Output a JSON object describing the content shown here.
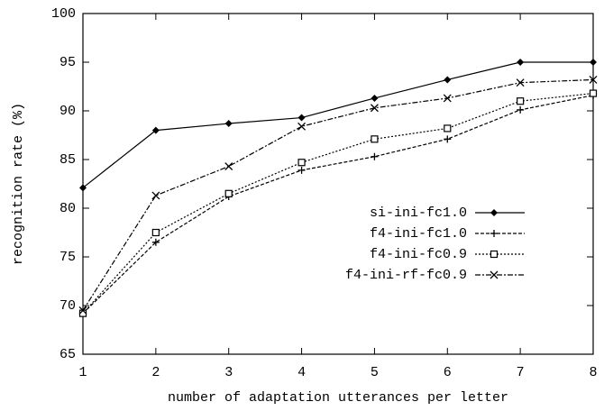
{
  "chart_data": {
    "type": "line",
    "xlabel": "number of adaptation utterances per letter",
    "ylabel": "recognition rate (%)",
    "x": [
      1,
      2,
      3,
      4,
      5,
      6,
      7,
      8
    ],
    "xlim": [
      1,
      8
    ],
    "xticks": [
      1,
      2,
      3,
      4,
      5,
      6,
      7,
      8
    ],
    "ylim": [
      65,
      100
    ],
    "yticks": [
      65,
      70,
      75,
      80,
      85,
      90,
      95,
      100
    ],
    "legend": "center-right",
    "series": [
      {
        "name": "si-ini-fc1.0",
        "color": "#000000",
        "dash": "solid",
        "marker": "diamond",
        "values": [
          82.1,
          88.0,
          88.7,
          89.3,
          91.3,
          93.2,
          95.0,
          95.0
        ]
      },
      {
        "name": "f4-ini-fc1.0",
        "color": "#000000",
        "dash": "dashed",
        "marker": "plus",
        "values": [
          69.2,
          76.5,
          81.2,
          83.9,
          85.3,
          87.1,
          90.1,
          91.6
        ]
      },
      {
        "name": "f4-ini-fc0.9",
        "color": "#000000",
        "dash": "dotted",
        "marker": "square",
        "values": [
          69.2,
          77.5,
          81.5,
          84.7,
          87.1,
          88.2,
          91.0,
          91.8
        ]
      },
      {
        "name": "f4-ini-rf-fc0.9",
        "color": "#000000",
        "dash": "dashdot",
        "marker": "x",
        "values": [
          69.5,
          81.3,
          84.3,
          88.4,
          90.3,
          91.3,
          92.9,
          93.2
        ]
      }
    ]
  }
}
